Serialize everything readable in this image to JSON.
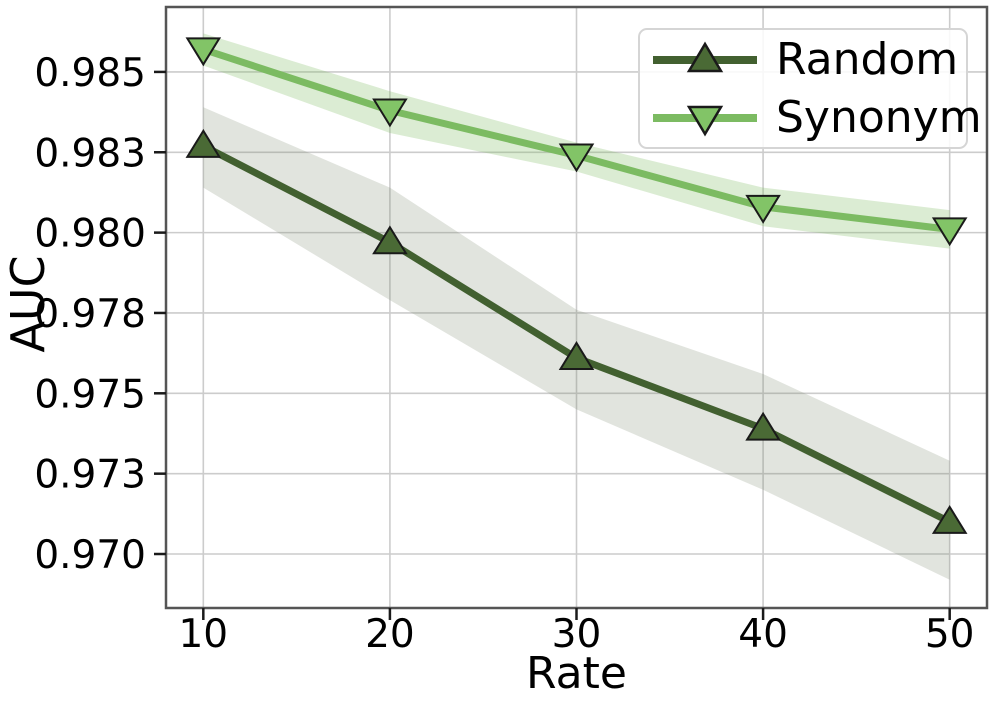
{
  "chart_data": {
    "type": "line",
    "xlabel": "Rate",
    "ylabel": "AUC",
    "x": [
      10,
      20,
      30,
      40,
      50
    ],
    "xlim": [
      8,
      52
    ],
    "ylim": [
      0.96832,
      0.98702
    ],
    "grid": true,
    "legend_position": "upper right",
    "x_ticks": {
      "values": [
        10,
        20,
        30,
        40,
        50
      ],
      "labels": [
        "10",
        "20",
        "30",
        "40",
        "50"
      ]
    },
    "y_ticks": {
      "values": [
        0.985,
        0.9825,
        0.98,
        0.9775,
        0.975,
        0.9725,
        0.97
      ],
      "labels": [
        "0.985",
        "0.983",
        "0.980",
        "0.978",
        "0.975",
        "0.973",
        "0.970"
      ]
    },
    "series": [
      {
        "name": "Random",
        "marker": "triangle-up",
        "line_color": "#426030",
        "marker_fill": "#4a6a35",
        "marker_edge": "#1a1a1a",
        "band_fill": "rgba(119,133,103,0.22)",
        "values": [
          0.9827,
          0.9797,
          0.9761,
          0.9739,
          0.971
        ],
        "band_upper": [
          0.9839,
          0.9814,
          0.9776,
          0.9756,
          0.9729
        ],
        "band_lower": [
          0.9814,
          0.9779,
          0.9745,
          0.972,
          0.9692
        ]
      },
      {
        "name": "Synonym",
        "marker": "triangle-down",
        "line_color": "#7cbb62",
        "marker_fill": "#82c467",
        "marker_edge": "#1a1a1a",
        "band_fill": "rgba(124,187,98,0.28)",
        "values": [
          0.9857,
          0.9838,
          0.9824,
          0.9808,
          0.9801
        ],
        "band_upper": [
          0.9862,
          0.9844,
          0.9828,
          0.9814,
          0.9807
        ],
        "band_lower": [
          0.9852,
          0.9831,
          0.9819,
          0.9802,
          0.9795
        ]
      }
    ],
    "style": {
      "grid_color": "#cccccc",
      "spine_color": "#555555",
      "tick_color": "#1a1a1a",
      "text_color": "#000000",
      "background": "#ffffff"
    }
  }
}
